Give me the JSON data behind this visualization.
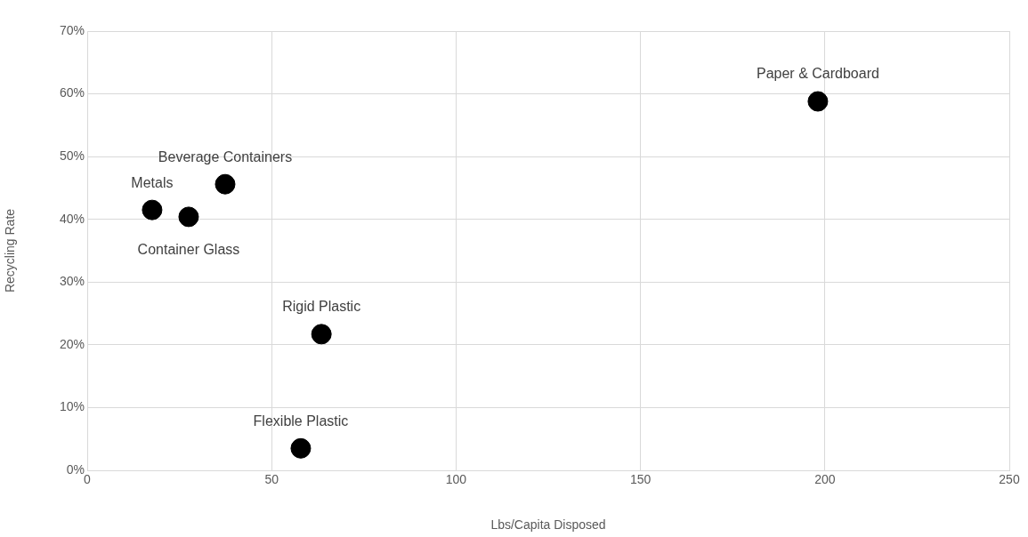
{
  "chart_data": {
    "type": "scatter",
    "xlabel": "Lbs/Capita Disposed",
    "ylabel": "Recycling Rate",
    "series": [
      {
        "name": "Metals",
        "color": "#000000",
        "x": [
          17.6
        ],
        "values": [
          41.5
        ]
      },
      {
        "name": "Container Glass",
        "color": "#000000",
        "x": [
          27.5
        ],
        "values": [
          40.4
        ]
      },
      {
        "name": "Beverage Containers",
        "color": "#000000",
        "x": [
          37.4
        ],
        "values": [
          45.6
        ]
      },
      {
        "name": "Rigid Plastic",
        "color": "#000000",
        "x": [
          63.5
        ],
        "values": [
          21.7
        ]
      },
      {
        "name": "Flexible Plastic",
        "color": "#000000",
        "x": [
          57.9
        ],
        "values": [
          3.5
        ]
      },
      {
        "name": "Paper & Cardboard",
        "color": "#000000",
        "x": [
          198.1
        ],
        "values": [
          58.8
        ]
      }
    ],
    "xlim": [
      0,
      250
    ],
    "xticks": [
      0,
      50,
      100,
      150,
      200,
      250
    ],
    "ylim": [
      0,
      70
    ],
    "yticks": [
      {
        "value": 0,
        "label": "0%"
      },
      {
        "value": 10,
        "label": "10%"
      },
      {
        "value": 20,
        "label": "20%"
      },
      {
        "value": 30,
        "label": "30%"
      },
      {
        "value": 40,
        "label": "40%"
      },
      {
        "value": 50,
        "label": "50%"
      },
      {
        "value": 60,
        "label": "60%"
      },
      {
        "value": 70,
        "label": "70%"
      }
    ],
    "grid": true,
    "legend": false,
    "marker": "circle"
  }
}
